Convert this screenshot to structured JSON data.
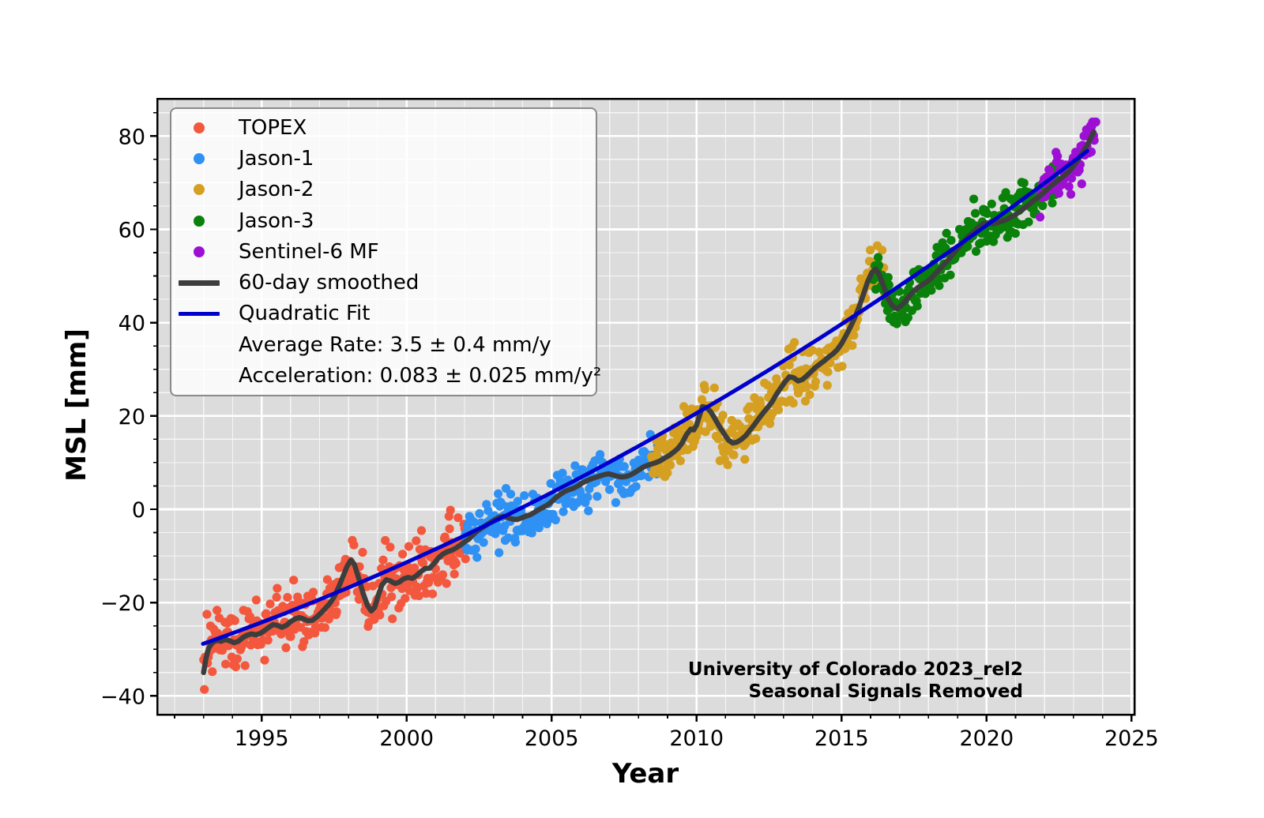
{
  "figure": {
    "xlabel": "Year",
    "ylabel": "MSL [mm]",
    "annotation_line1": "University of Colorado 2023_rel2",
    "annotation_line2": "Seasonal Signals Removed"
  },
  "legend": {
    "items": [
      {
        "marker": "dot",
        "color": "#f3583e",
        "label": "TOPEX"
      },
      {
        "marker": "dot",
        "color": "#2e91f3",
        "label": "Jason-1"
      },
      {
        "marker": "dot",
        "color": "#d5a021",
        "label": "Jason-2"
      },
      {
        "marker": "dot",
        "color": "#0a810a",
        "label": "Jason-3"
      },
      {
        "marker": "dot",
        "color": "#9c0fd3",
        "label": "Sentinel-6 MF"
      },
      {
        "marker": "line",
        "color": "#3d3d3d",
        "thickness": 7,
        "label": "60-day smoothed"
      },
      {
        "marker": "line",
        "color": "#0000cc",
        "thickness": 5,
        "label": "Quadratic Fit"
      },
      {
        "marker": "none",
        "color": "",
        "label": "Average Rate: 3.5 ± 0.4 mm/y"
      },
      {
        "marker": "none",
        "color": "",
        "label": "Acceleration: 0.083 ± 0.025 mm/y²"
      }
    ]
  },
  "chart_data": {
    "type": "scatter",
    "title": "",
    "xlabel": "Year",
    "ylabel": "MSL [mm]",
    "xlim": [
      1991.4,
      2025.1
    ],
    "ylim": [
      -44,
      88
    ],
    "x_major_ticks": [
      1995,
      2000,
      2005,
      2010,
      2015,
      2020,
      2025
    ],
    "y_major_ticks": [
      -40,
      -20,
      0,
      20,
      40,
      60,
      80
    ],
    "x_minor_step": 1,
    "y_minor_step": 5,
    "grid": "major+minor white on gray",
    "legend_position": "upper left",
    "colors": {
      "axes_background": "#dcdcdc",
      "grid": "#ffffff",
      "spine": "#000000",
      "smoothed_line": "#3d3d3d",
      "quadratic_fit": "#0000cc"
    },
    "series": [
      {
        "name": "TOPEX",
        "color": "#f3583e",
        "range": [
          1993.0,
          2002.05
        ],
        "scatter_sd_mm": 3.1,
        "points_per_year": 37
      },
      {
        "name": "Jason-1",
        "color": "#2e91f3",
        "range": [
          2002.0,
          2008.75
        ],
        "scatter_sd_mm": 2.7,
        "points_per_year": 37
      },
      {
        "name": "Jason-2",
        "color": "#d5a021",
        "range": [
          2008.45,
          2016.55
        ],
        "scatter_sd_mm": 2.9,
        "points_per_year": 37
      },
      {
        "name": "Jason-3",
        "color": "#0a810a",
        "range": [
          2016.1,
          2022.4
        ],
        "scatter_sd_mm": 2.5,
        "points_per_year": 37
      },
      {
        "name": "Sentinel-6 MF",
        "color": "#9c0fd3",
        "range": [
          2021.85,
          2023.78
        ],
        "scatter_sd_mm": 2.3,
        "points_per_year": 37
      }
    ],
    "smoothed": {
      "name": "60-day smoothed",
      "color": "#3d3d3d",
      "points": [
        [
          1993.0,
          -35.0
        ],
        [
          1993.08,
          -32.0
        ],
        [
          1993.17,
          -29.8
        ],
        [
          1993.3,
          -28.6
        ],
        [
          1993.45,
          -28.1
        ],
        [
          1993.6,
          -28.3
        ],
        [
          1993.75,
          -27.9
        ],
        [
          1993.9,
          -28.2
        ],
        [
          1994.05,
          -28.6
        ],
        [
          1994.2,
          -28.3
        ],
        [
          1994.35,
          -27.5
        ],
        [
          1994.5,
          -27.0
        ],
        [
          1994.65,
          -26.7
        ],
        [
          1994.8,
          -26.9
        ],
        [
          1994.95,
          -26.6
        ],
        [
          1995.1,
          -26.0
        ],
        [
          1995.25,
          -25.3
        ],
        [
          1995.4,
          -24.7
        ],
        [
          1995.55,
          -24.9
        ],
        [
          1995.7,
          -25.3
        ],
        [
          1995.85,
          -24.9
        ],
        [
          1996.0,
          -24.1
        ],
        [
          1996.15,
          -23.5
        ],
        [
          1996.3,
          -23.2
        ],
        [
          1996.45,
          -23.5
        ],
        [
          1996.6,
          -23.9
        ],
        [
          1996.75,
          -23.8
        ],
        [
          1996.9,
          -23.1
        ],
        [
          1997.05,
          -22.2
        ],
        [
          1997.2,
          -21.2
        ],
        [
          1997.35,
          -20.2
        ],
        [
          1997.5,
          -18.8
        ],
        [
          1997.65,
          -16.8
        ],
        [
          1997.8,
          -14.5
        ],
        [
          1997.95,
          -12.2
        ],
        [
          1998.08,
          -10.9
        ],
        [
          1998.2,
          -11.8
        ],
        [
          1998.35,
          -14.8
        ],
        [
          1998.5,
          -18.0
        ],
        [
          1998.65,
          -20.6
        ],
        [
          1998.78,
          -21.8
        ],
        [
          1998.9,
          -21.0
        ],
        [
          1999.02,
          -18.5
        ],
        [
          1999.15,
          -16.2
        ],
        [
          1999.3,
          -15.1
        ],
        [
          1999.45,
          -15.4
        ],
        [
          1999.6,
          -15.9
        ],
        [
          1999.75,
          -15.6
        ],
        [
          1999.9,
          -14.9
        ],
        [
          2000.05,
          -14.6
        ],
        [
          2000.2,
          -14.8
        ],
        [
          2000.35,
          -14.2
        ],
        [
          2000.5,
          -13.3
        ],
        [
          2000.65,
          -12.7
        ],
        [
          2000.8,
          -12.6
        ],
        [
          2000.95,
          -11.6
        ],
        [
          2001.1,
          -10.4
        ],
        [
          2001.25,
          -9.6
        ],
        [
          2001.4,
          -9.1
        ],
        [
          2001.55,
          -8.8
        ],
        [
          2001.7,
          -8.3
        ],
        [
          2001.85,
          -7.7
        ],
        [
          2002.0,
          -7.0
        ],
        [
          2002.15,
          -6.4
        ],
        [
          2002.3,
          -5.4
        ],
        [
          2002.45,
          -4.6
        ],
        [
          2002.6,
          -4.0
        ],
        [
          2002.75,
          -3.4
        ],
        [
          2002.9,
          -2.8
        ],
        [
          2003.05,
          -2.2
        ],
        [
          2003.2,
          -1.7
        ],
        [
          2003.35,
          -1.5
        ],
        [
          2003.5,
          -1.8
        ],
        [
          2003.65,
          -2.1
        ],
        [
          2003.8,
          -2.2
        ],
        [
          2003.95,
          -1.9
        ],
        [
          2004.1,
          -1.5
        ],
        [
          2004.25,
          -1.2
        ],
        [
          2004.4,
          -0.7
        ],
        [
          2004.55,
          -0.1
        ],
        [
          2004.7,
          0.4
        ],
        [
          2004.85,
          0.9
        ],
        [
          2005.0,
          1.6
        ],
        [
          2005.15,
          2.5
        ],
        [
          2005.3,
          3.2
        ],
        [
          2005.45,
          3.8
        ],
        [
          2005.6,
          4.2
        ],
        [
          2005.75,
          4.5
        ],
        [
          2005.9,
          5.0
        ],
        [
          2006.05,
          5.6
        ],
        [
          2006.2,
          6.1
        ],
        [
          2006.35,
          6.5
        ],
        [
          2006.5,
          6.8
        ],
        [
          2006.65,
          7.1
        ],
        [
          2006.8,
          7.4
        ],
        [
          2006.95,
          7.6
        ],
        [
          2007.1,
          7.4
        ],
        [
          2007.25,
          7.1
        ],
        [
          2007.4,
          6.9
        ],
        [
          2007.55,
          7.0
        ],
        [
          2007.7,
          7.3
        ],
        [
          2007.85,
          7.8
        ],
        [
          2008.0,
          8.4
        ],
        [
          2008.15,
          9.0
        ],
        [
          2008.3,
          9.4
        ],
        [
          2008.45,
          9.7
        ],
        [
          2008.6,
          10.0
        ],
        [
          2008.75,
          10.4
        ],
        [
          2008.9,
          11.0
        ],
        [
          2009.05,
          11.5
        ],
        [
          2009.2,
          12.2
        ],
        [
          2009.35,
          13.0
        ],
        [
          2009.5,
          14.2
        ],
        [
          2009.65,
          16.0
        ],
        [
          2009.8,
          17.2
        ],
        [
          2009.9,
          17.0
        ],
        [
          2010.0,
          18.0
        ],
        [
          2010.1,
          20.0
        ],
        [
          2010.2,
          22.0
        ],
        [
          2010.35,
          21.8
        ],
        [
          2010.5,
          20.8
        ],
        [
          2010.65,
          19.2
        ],
        [
          2010.8,
          17.6
        ],
        [
          2010.95,
          16.2
        ],
        [
          2011.1,
          14.8
        ],
        [
          2011.25,
          14.2
        ],
        [
          2011.4,
          14.4
        ],
        [
          2011.55,
          15.0
        ],
        [
          2011.7,
          15.8
        ],
        [
          2011.85,
          17.0
        ],
        [
          2012.0,
          18.2
        ],
        [
          2012.15,
          19.5
        ],
        [
          2012.3,
          20.7
        ],
        [
          2012.45,
          21.8
        ],
        [
          2012.6,
          23.0
        ],
        [
          2012.75,
          24.6
        ],
        [
          2012.9,
          26.0
        ],
        [
          2013.05,
          27.3
        ],
        [
          2013.2,
          28.4
        ],
        [
          2013.35,
          28.2
        ],
        [
          2013.5,
          27.5
        ],
        [
          2013.65,
          27.8
        ],
        [
          2013.8,
          28.6
        ],
        [
          2013.95,
          29.5
        ],
        [
          2014.1,
          30.4
        ],
        [
          2014.25,
          31.1
        ],
        [
          2014.4,
          31.8
        ],
        [
          2014.55,
          32.6
        ],
        [
          2014.7,
          33.3
        ],
        [
          2014.85,
          34.2
        ],
        [
          2015.0,
          35.5
        ],
        [
          2015.15,
          37.2
        ],
        [
          2015.3,
          39.0
        ],
        [
          2015.45,
          41.0
        ],
        [
          2015.6,
          43.3
        ],
        [
          2015.75,
          46.0
        ],
        [
          2015.9,
          48.8
        ],
        [
          2016.05,
          50.8
        ],
        [
          2016.18,
          51.5
        ],
        [
          2016.3,
          50.3
        ],
        [
          2016.45,
          47.8
        ],
        [
          2016.6,
          45.2
        ],
        [
          2016.75,
          43.6
        ],
        [
          2016.9,
          43.0
        ],
        [
          2017.05,
          43.6
        ],
        [
          2017.2,
          44.6
        ],
        [
          2017.35,
          45.8
        ],
        [
          2017.5,
          46.8
        ],
        [
          2017.65,
          47.6
        ],
        [
          2017.8,
          48.2
        ],
        [
          2017.95,
          48.8
        ],
        [
          2018.1,
          49.6
        ],
        [
          2018.25,
          50.6
        ],
        [
          2018.4,
          51.6
        ],
        [
          2018.55,
          52.6
        ],
        [
          2018.7,
          53.6
        ],
        [
          2018.85,
          54.8
        ],
        [
          2019.0,
          55.9
        ],
        [
          2019.15,
          57.0
        ],
        [
          2019.3,
          58.0
        ],
        [
          2019.45,
          58.9
        ],
        [
          2019.6,
          59.7
        ],
        [
          2019.75,
          60.6
        ],
        [
          2019.9,
          61.3
        ],
        [
          2020.05,
          61.4
        ],
        [
          2020.2,
          61.2
        ],
        [
          2020.35,
          61.4
        ],
        [
          2020.5,
          61.7
        ],
        [
          2020.65,
          62.0
        ],
        [
          2020.8,
          62.5
        ],
        [
          2020.95,
          63.0
        ],
        [
          2021.1,
          63.6
        ],
        [
          2021.25,
          64.3
        ],
        [
          2021.4,
          65.0
        ],
        [
          2021.55,
          65.8
        ],
        [
          2021.7,
          66.5
        ],
        [
          2021.85,
          67.2
        ],
        [
          2022.0,
          68.0
        ],
        [
          2022.15,
          68.9
        ],
        [
          2022.3,
          69.7
        ],
        [
          2022.45,
          70.4
        ],
        [
          2022.6,
          71.1
        ],
        [
          2022.75,
          71.9
        ],
        [
          2022.9,
          72.8
        ],
        [
          2023.05,
          74.0
        ],
        [
          2023.2,
          75.3
        ],
        [
          2023.35,
          76.8
        ],
        [
          2023.5,
          78.4
        ],
        [
          2023.6,
          79.6
        ],
        [
          2023.7,
          80.9
        ]
      ]
    },
    "quadratic_fit": {
      "name": "Quadratic Fit",
      "color": "#0000cc",
      "t0": 1993.0,
      "value_at_t0_mm": -28.8,
      "initial_rate_mm_per_y": 2.2,
      "quadratic_coeff_mm_per_y2": 0.0415,
      "domain": [
        1992.98,
        2023.72
      ],
      "average_rate_label": "Average Rate: 3.5 ± 0.4 mm/y",
      "acceleration_label": "Acceleration: 0.083 ± 0.025 mm/y²",
      "average_rate_mm_per_y": 3.5,
      "average_rate_uncertainty": 0.4,
      "acceleration_mm_per_y2": 0.083,
      "acceleration_uncertainty": 0.025
    },
    "annotations": [
      "University of Colorado 2023_rel2",
      "Seasonal Signals Removed"
    ]
  }
}
